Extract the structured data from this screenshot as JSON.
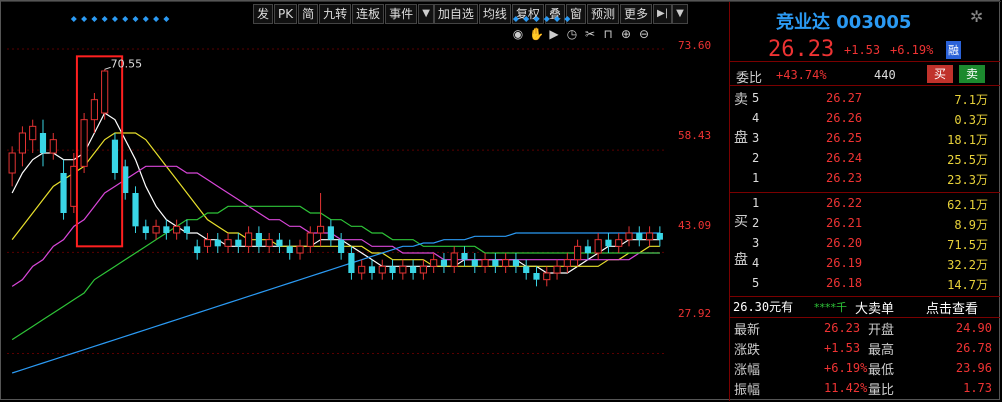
{
  "toolbar": {
    "items": [
      "发",
      "PK",
      "简",
      "九转",
      "连板",
      "事件",
      "▼",
      "加自选",
      "均线",
      "复权",
      "叠",
      "窗",
      "预测",
      "更多",
      "▶|",
      "▼"
    ]
  },
  "chart_tools": {
    "icons": [
      "eye-icon",
      "hand-icon",
      "play-icon",
      "clock-icon",
      "scissors-icon",
      "lock-icon",
      "zoom-in-icon",
      "zoom-out-icon"
    ]
  },
  "colors": {
    "up": "#e33333",
    "down": "#39d6e6",
    "ma5": "#ffffff",
    "ma10": "#e8e02c",
    "ma20": "#d846d8",
    "ma30": "#2ec438",
    "ma60": "#2b9af3",
    "highlight_box": "#ff2020"
  },
  "chart_data": {
    "type": "candlestick",
    "price_axis_ticks": [
      "73.60",
      "58.43",
      "43.09",
      "27.92"
    ],
    "ylim": [
      22,
      76
    ],
    "annotation": "70.55",
    "candles": [
      [
        55,
        58,
        53,
        59
      ],
      [
        58,
        61,
        56,
        62
      ],
      [
        60,
        62,
        58,
        63
      ],
      [
        61,
        58,
        56,
        63
      ],
      [
        58,
        60,
        57,
        61
      ],
      [
        55,
        49,
        48,
        57
      ],
      [
        50,
        56,
        49,
        58
      ],
      [
        56,
        63,
        55,
        64
      ],
      [
        63,
        66,
        61,
        67
      ],
      [
        64,
        70.3,
        63,
        70.55
      ],
      [
        60,
        55,
        54,
        61
      ],
      [
        56,
        52,
        51,
        57
      ],
      [
        52,
        47,
        46,
        53
      ],
      [
        47,
        46,
        45,
        48
      ],
      [
        46,
        47,
        45,
        48
      ],
      [
        47,
        46,
        45,
        48
      ],
      [
        46,
        47,
        45,
        48
      ],
      [
        47,
        46,
        45,
        48
      ],
      [
        44,
        43,
        42,
        45
      ],
      [
        44,
        45,
        43,
        46
      ],
      [
        45,
        44,
        43,
        46
      ],
      [
        44,
        45,
        43,
        46
      ],
      [
        45,
        44,
        43,
        46
      ],
      [
        44,
        46,
        43,
        47
      ],
      [
        46,
        44,
        43,
        47
      ],
      [
        44,
        45,
        43,
        46
      ],
      [
        45,
        44,
        43,
        46
      ],
      [
        44,
        43,
        42,
        45
      ],
      [
        43,
        44,
        42,
        45
      ],
      [
        44,
        46,
        43,
        47
      ],
      [
        46,
        47,
        44,
        52
      ],
      [
        47,
        45,
        44,
        48
      ],
      [
        45,
        43,
        42,
        46
      ],
      [
        43,
        40,
        39,
        44
      ],
      [
        40,
        41,
        39,
        42
      ],
      [
        41,
        40,
        39,
        42
      ],
      [
        40,
        41,
        39,
        42
      ],
      [
        41,
        40,
        39,
        42
      ],
      [
        40,
        41,
        39,
        42
      ],
      [
        41,
        40,
        39,
        42
      ],
      [
        40,
        41,
        39,
        42
      ],
      [
        41,
        42,
        40,
        43
      ],
      [
        42,
        41,
        40,
        43
      ],
      [
        41,
        43,
        40,
        44
      ],
      [
        43,
        42,
        41,
        44
      ],
      [
        42,
        41,
        40,
        43
      ],
      [
        41,
        42,
        40,
        43
      ],
      [
        42,
        41,
        40,
        43
      ],
      [
        41,
        42,
        40,
        43
      ],
      [
        42,
        41,
        40,
        43
      ],
      [
        41,
        40,
        39,
        42
      ],
      [
        40,
        39,
        38,
        41
      ],
      [
        39,
        40,
        38,
        41
      ],
      [
        40,
        41,
        39,
        42
      ],
      [
        41,
        42,
        40,
        43
      ],
      [
        42,
        44,
        41,
        45
      ],
      [
        44,
        43,
        42,
        45
      ],
      [
        43,
        45,
        42,
        46
      ],
      [
        45,
        44,
        43,
        46
      ],
      [
        44,
        45,
        43,
        46
      ],
      [
        45,
        46,
        44,
        47
      ],
      [
        46,
        45,
        44,
        47
      ],
      [
        45,
        46,
        44,
        47
      ],
      [
        46,
        45,
        44,
        47
      ]
    ],
    "ma_series": [
      {
        "name": "MA5",
        "color_key": "ma5",
        "values": [
          52,
          55,
          57,
          58,
          58,
          57,
          57,
          58,
          61,
          64,
          63,
          60,
          57,
          53,
          50,
          48,
          47,
          46,
          46,
          45,
          45,
          44,
          44,
          44,
          44,
          44,
          44,
          44,
          44,
          44,
          45,
          45,
          45,
          44,
          43,
          42,
          41,
          41,
          41,
          41,
          41,
          41,
          41,
          41,
          42,
          42,
          42,
          42,
          42,
          42,
          41,
          41,
          40,
          40,
          40,
          41,
          42,
          43,
          44,
          44,
          45,
          45,
          45,
          45
        ]
      },
      {
        "name": "MA10",
        "color_key": "ma10",
        "values": [
          45,
          47,
          49,
          51,
          53,
          54,
          55,
          56,
          58,
          60,
          61,
          61,
          61,
          60,
          58,
          56,
          54,
          52,
          50,
          48,
          47,
          46,
          46,
          45,
          45,
          45,
          44,
          44,
          44,
          44,
          44,
          44,
          44,
          44,
          44,
          43,
          43,
          42,
          42,
          42,
          42,
          41,
          41,
          41,
          41,
          41,
          41,
          41,
          41,
          41,
          41,
          41,
          41,
          41,
          41,
          41,
          41,
          41,
          42,
          42,
          43,
          43,
          44,
          44
        ]
      },
      {
        "name": "MA20",
        "color_key": "ma20",
        "values": [
          38,
          39,
          41,
          42,
          44,
          45,
          47,
          48,
          50,
          52,
          53,
          54,
          55,
          56,
          56,
          56,
          56,
          55,
          55,
          54,
          53,
          52,
          51,
          50,
          49,
          48,
          48,
          47,
          47,
          46,
          46,
          46,
          45,
          45,
          45,
          44,
          44,
          44,
          43,
          43,
          43,
          43,
          42,
          42,
          42,
          42,
          42,
          42,
          42,
          42,
          42,
          42,
          42,
          42,
          42,
          42,
          42,
          42,
          42,
          42,
          42,
          43,
          43,
          43
        ]
      },
      {
        "name": "MA30",
        "color_key": "ma30",
        "values": [
          30,
          31,
          32,
          33,
          34,
          35,
          36,
          37,
          39,
          40,
          41,
          42,
          43,
          44,
          45,
          46,
          47,
          48,
          48,
          49,
          49,
          50,
          50,
          50,
          50,
          50,
          50,
          50,
          50,
          49,
          49,
          48,
          48,
          47,
          47,
          46,
          46,
          45,
          45,
          45,
          44,
          44,
          44,
          44,
          44,
          44,
          43,
          43,
          43,
          43,
          43,
          43,
          43,
          43,
          43,
          43,
          43,
          43,
          43,
          43,
          43,
          43,
          43,
          43
        ]
      },
      {
        "name": "MA60",
        "color_key": "ma60",
        "values": [
          25,
          25.5,
          26,
          26.5,
          27,
          27.5,
          28,
          28.5,
          29,
          29.5,
          30,
          30.5,
          31,
          31.5,
          32,
          32.5,
          33,
          33.5,
          34,
          34.5,
          35,
          35.5,
          36,
          36.5,
          37,
          37.5,
          38,
          38.5,
          39,
          39.5,
          40,
          40.5,
          41,
          41.5,
          42,
          42.5,
          43,
          43.5,
          44,
          44,
          44.5,
          44.5,
          45,
          45,
          45,
          45.5,
          45.5,
          45.5,
          45.5,
          46,
          46,
          46,
          46,
          46,
          46,
          46,
          46,
          46,
          46,
          46,
          46,
          46,
          46,
          46
        ]
      }
    ]
  },
  "stock": {
    "name": "竞业达",
    "code": "003005",
    "price": "26.23",
    "change": "+1.53",
    "change_pct": "+6.19%",
    "badge": "融"
  },
  "weibi": {
    "label": "委比",
    "pct": "+43.74%",
    "diff": "440",
    "buy_label": "买",
    "sell_label": "卖"
  },
  "sell_side_label": [
    "卖",
    "盘"
  ],
  "buy_side_label": [
    "买",
    "盘"
  ],
  "asks": [
    {
      "level": "5",
      "price": "26.27",
      "vol": "7.1万"
    },
    {
      "level": "4",
      "price": "26.26",
      "vol": "0.3万"
    },
    {
      "level": "3",
      "price": "26.25",
      "vol": "18.1万"
    },
    {
      "level": "2",
      "price": "26.24",
      "vol": "25.5万"
    },
    {
      "level": "1",
      "price": "26.23",
      "vol": "23.3万"
    }
  ],
  "bids": [
    {
      "level": "1",
      "price": "26.22",
      "vol": "62.1万"
    },
    {
      "level": "2",
      "price": "26.21",
      "vol": "8.9万"
    },
    {
      "level": "3",
      "price": "26.20",
      "vol": "71.5万"
    },
    {
      "level": "4",
      "price": "26.19",
      "vol": "32.2万"
    },
    {
      "level": "5",
      "price": "26.18",
      "vol": "14.7万"
    }
  ],
  "big_order": {
    "text": "26.30元有",
    "stars": "****千",
    "label": "大卖单",
    "link": "点击查看"
  },
  "stats": [
    {
      "l1": "最新",
      "v1": "26.23",
      "l2": "开盘",
      "v2": "24.90"
    },
    {
      "l1": "涨跌",
      "v1": "+1.53",
      "l2": "最高",
      "v2": "26.78"
    },
    {
      "l1": "涨幅",
      "v1": "+6.19%",
      "l2": "最低",
      "v2": "23.96"
    },
    {
      "l1": "振幅",
      "v1": "11.42%",
      "l2": "量比",
      "v2": "1.73"
    }
  ]
}
